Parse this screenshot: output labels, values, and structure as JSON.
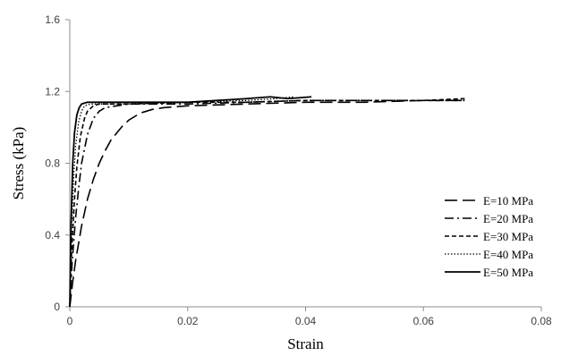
{
  "chart_data": {
    "type": "line",
    "title": "",
    "xlabel": "Strain",
    "ylabel": "Stress (kPa)",
    "xlim": [
      0,
      0.08
    ],
    "ylim": [
      0,
      1.6
    ],
    "xticks": [
      0,
      0.02,
      0.04,
      0.06,
      0.08
    ],
    "xtick_labels": [
      "0",
      "0.02",
      "0.04",
      "0.06",
      "0.08"
    ],
    "yticks": [
      0,
      0.4,
      0.8,
      1.2,
      1.6
    ],
    "ytick_labels": [
      "0",
      "0.4",
      "0.8",
      "1.2",
      "1.6"
    ],
    "grid": false,
    "legend_position": "right",
    "series": [
      {
        "name": "E=10 MPa",
        "dash": "long-dash",
        "points": [
          [
            0,
            0
          ],
          [
            0.0005,
            0.14
          ],
          [
            0.001,
            0.26
          ],
          [
            0.002,
            0.45
          ],
          [
            0.003,
            0.6
          ],
          [
            0.004,
            0.71
          ],
          [
            0.005,
            0.8
          ],
          [
            0.006,
            0.87
          ],
          [
            0.007,
            0.93
          ],
          [
            0.008,
            0.97
          ],
          [
            0.009,
            1.01
          ],
          [
            0.01,
            1.04
          ],
          [
            0.012,
            1.08
          ],
          [
            0.014,
            1.1
          ],
          [
            0.016,
            1.11
          ],
          [
            0.02,
            1.12
          ],
          [
            0.03,
            1.13
          ],
          [
            0.04,
            1.14
          ],
          [
            0.05,
            1.14
          ],
          [
            0.06,
            1.15
          ],
          [
            0.067,
            1.15
          ]
        ]
      },
      {
        "name": "E=20 MPa",
        "dash": "dash-dot",
        "points": [
          [
            0,
            0
          ],
          [
            0.0004,
            0.25
          ],
          [
            0.001,
            0.5
          ],
          [
            0.0015,
            0.66
          ],
          [
            0.002,
            0.8
          ],
          [
            0.003,
            0.96
          ],
          [
            0.004,
            1.05
          ],
          [
            0.005,
            1.09
          ],
          [
            0.006,
            1.11
          ],
          [
            0.008,
            1.12
          ],
          [
            0.01,
            1.13
          ],
          [
            0.02,
            1.13
          ],
          [
            0.03,
            1.14
          ],
          [
            0.04,
            1.15
          ],
          [
            0.05,
            1.15
          ],
          [
            0.06,
            1.15
          ],
          [
            0.067,
            1.15
          ]
        ]
      },
      {
        "name": "E=30 MPa",
        "dash": "short-dash",
        "points": [
          [
            0,
            0
          ],
          [
            0.0003,
            0.3
          ],
          [
            0.0008,
            0.6
          ],
          [
            0.0012,
            0.78
          ],
          [
            0.0018,
            0.95
          ],
          [
            0.0025,
            1.05
          ],
          [
            0.003,
            1.09
          ],
          [
            0.004,
            1.12
          ],
          [
            0.005,
            1.13
          ],
          [
            0.01,
            1.13
          ],
          [
            0.02,
            1.14
          ],
          [
            0.03,
            1.14
          ],
          [
            0.04,
            1.15
          ],
          [
            0.05,
            1.15
          ],
          [
            0.06,
            1.15
          ],
          [
            0.067,
            1.16
          ]
        ]
      },
      {
        "name": "E=40 MPa",
        "dash": "dotted",
        "points": [
          [
            0,
            0
          ],
          [
            0.0003,
            0.45
          ],
          [
            0.0007,
            0.75
          ],
          [
            0.001,
            0.9
          ],
          [
            0.0015,
            1.03
          ],
          [
            0.002,
            1.09
          ],
          [
            0.0025,
            1.12
          ],
          [
            0.0035,
            1.13
          ],
          [
            0.01,
            1.13
          ],
          [
            0.02,
            1.14
          ],
          [
            0.03,
            1.15
          ],
          [
            0.035,
            1.16
          ],
          [
            0.038,
            1.17
          ]
        ]
      },
      {
        "name": "E=50 MPa",
        "dash": "solid",
        "points": [
          [
            0,
            0
          ],
          [
            0.0002,
            0.45
          ],
          [
            0.0005,
            0.8
          ],
          [
            0.0008,
            0.97
          ],
          [
            0.0012,
            1.07
          ],
          [
            0.0016,
            1.11
          ],
          [
            0.002,
            1.13
          ],
          [
            0.003,
            1.14
          ],
          [
            0.01,
            1.14
          ],
          [
            0.02,
            1.14
          ],
          [
            0.025,
            1.15
          ],
          [
            0.03,
            1.16
          ],
          [
            0.034,
            1.17
          ],
          [
            0.037,
            1.16
          ],
          [
            0.041,
            1.17
          ]
        ]
      }
    ]
  }
}
